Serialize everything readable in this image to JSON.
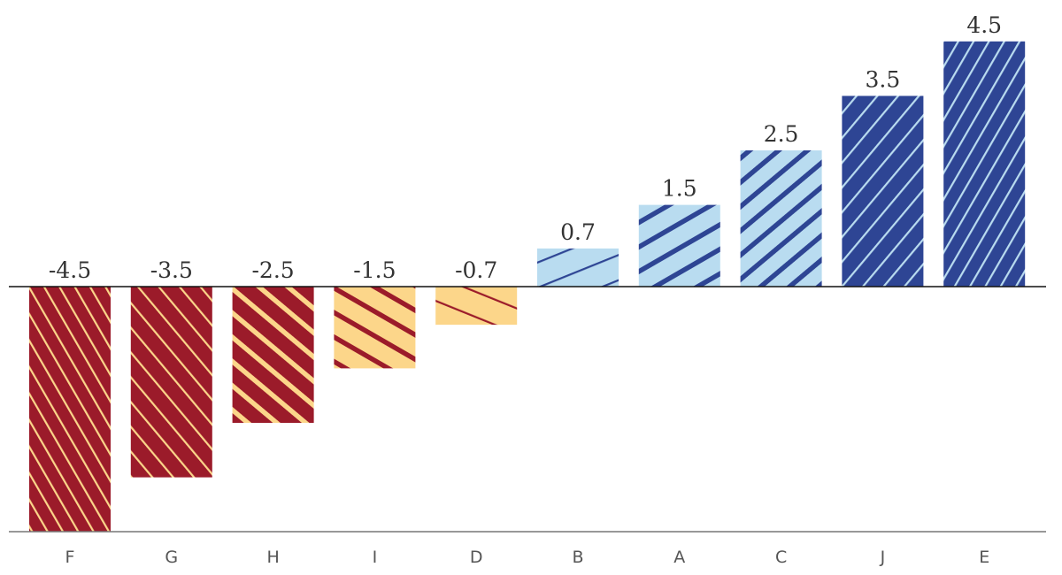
{
  "chart_data": {
    "type": "bar",
    "categories": [
      "F",
      "G",
      "H",
      "I",
      "D",
      "B",
      "A",
      "C",
      "J",
      "E"
    ],
    "values": [
      -4.5,
      -3.5,
      -2.5,
      -1.5,
      -0.7,
      0.7,
      1.5,
      2.5,
      3.5,
      4.5
    ],
    "value_labels": [
      "-4.5",
      "-3.5",
      "-2.5",
      "-1.5",
      "-0.7",
      "0.7",
      "1.5",
      "2.5",
      "3.5",
      "4.5"
    ],
    "ylim": [
      -4.5,
      4.5
    ],
    "grid": false,
    "legend": "none",
    "colors": {
      "negative_dark": "#9b1b2a",
      "negative_light": "#fcd68a",
      "positive_light": "#b9dcf0",
      "positive_dark": "#2e4594",
      "zero_line": "#111111",
      "bottom_axis": "#777777"
    }
  }
}
